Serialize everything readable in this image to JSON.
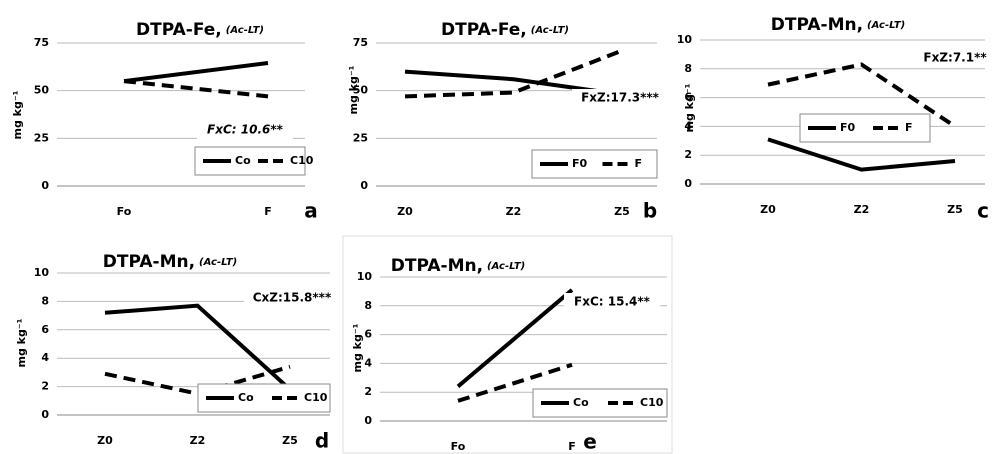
{
  "chart_data": [
    {
      "type": "line",
      "title": "DTPA-Fe,",
      "subtitle": "(Ac-LT)",
      "ylabel": "mg kg⁻¹",
      "categories": [
        "Fo",
        "F"
      ],
      "ylim": [
        0,
        75
      ],
      "yticks": [
        0,
        25,
        50,
        75
      ],
      "grid": true,
      "series": [
        {
          "name": "Co",
          "color": "#000000",
          "line_style": "solid",
          "values": [
            55,
            64.5
          ]
        },
        {
          "name": "C10",
          "color": "#000000",
          "line_style": "dashed",
          "values": [
            55,
            47
          ]
        }
      ],
      "annotation": "FxC: 10.6**",
      "panel_label": "a"
    },
    {
      "type": "line",
      "title": "DTPA-Fe,",
      "subtitle": "(Ac-LT)",
      "ylabel": "mg kg⁻¹",
      "categories": [
        "Z0",
        "Z2",
        "Z5"
      ],
      "ylim": [
        0,
        75
      ],
      "yticks": [
        0,
        25,
        50,
        75
      ],
      "grid": true,
      "series": [
        {
          "name": "F0",
          "color": "#000000",
          "line_style": "solid",
          "values": [
            60,
            56,
            48
          ]
        },
        {
          "name": "F",
          "color": "#000000",
          "line_style": "dashed",
          "values": [
            47,
            49,
            71
          ]
        }
      ],
      "annotation": "FxZ:17.3***",
      "panel_label": "b"
    },
    {
      "type": "line",
      "title": "DTPA-Mn,",
      "subtitle": "(Ac-LT)",
      "ylabel": "mg kg⁻¹",
      "categories": [
        "Z0",
        "Z2",
        "Z5"
      ],
      "ylim": [
        0,
        10
      ],
      "yticks": [
        0,
        2,
        4,
        6,
        8,
        10
      ],
      "grid": true,
      "series": [
        {
          "name": "F0",
          "color": "#000000",
          "line_style": "solid",
          "values": [
            3.1,
            1.0,
            1.6
          ]
        },
        {
          "name": "F",
          "color": "#000000",
          "line_style": "dashed",
          "values": [
            6.9,
            8.3,
            4.0
          ]
        }
      ],
      "annotation": "FxZ:7.1**",
      "panel_label": "c"
    },
    {
      "type": "line",
      "title": "DTPA-Mn,",
      "subtitle": "(Ac-LT)",
      "ylabel": "mg kg⁻¹",
      "categories": [
        "Z0",
        "Z2",
        "Z5"
      ],
      "ylim": [
        0,
        10
      ],
      "yticks": [
        0,
        2,
        4,
        6,
        8,
        10
      ],
      "grid": true,
      "series": [
        {
          "name": "Co",
          "color": "#000000",
          "line_style": "solid",
          "values": [
            7.2,
            7.7,
            1.8
          ]
        },
        {
          "name": "C10",
          "color": "#000000",
          "line_style": "dashed",
          "values": [
            2.9,
            1.5,
            3.4
          ]
        }
      ],
      "annotation": "CxZ:15.8***",
      "panel_label": "d"
    },
    {
      "type": "line",
      "title": "DTPA-Mn,",
      "subtitle": "(Ac-LT)",
      "ylabel": "mg kg⁻¹",
      "categories": [
        "Fo",
        "F"
      ],
      "ylim": [
        0,
        10
      ],
      "yticks": [
        0,
        2,
        4,
        6,
        8,
        10
      ],
      "grid": true,
      "series": [
        {
          "name": "Co",
          "color": "#000000",
          "line_style": "solid",
          "values": [
            2.4,
            9.1
          ]
        },
        {
          "name": "C10",
          "color": "#000000",
          "line_style": "dashed",
          "values": [
            1.4,
            3.9
          ]
        }
      ],
      "annotation": "FxC: 15.4**",
      "panel_label": "e"
    }
  ]
}
